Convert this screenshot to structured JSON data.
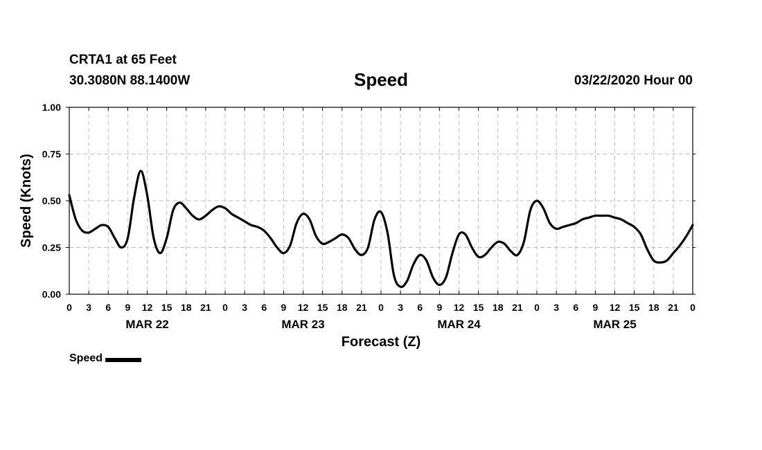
{
  "header": {
    "station": "CRTA1 at 65 Feet",
    "coords": "30.3080N 88.1400W",
    "title": "Speed",
    "date": "03/22/2020 Hour 00"
  },
  "legend": {
    "label": "Speed"
  },
  "chart_data": {
    "type": "line",
    "title": "Speed",
    "xlabel": "Forecast (Z)",
    "ylabel": "Speed (Knots)",
    "xlim": [
      0,
      96
    ],
    "ylim": [
      0,
      1
    ],
    "y_ticks": [
      "0.00",
      "0.25",
      "0.50",
      "0.75",
      "1.00"
    ],
    "x_tick_hours": [
      0,
      3,
      6,
      9,
      12,
      15,
      18,
      21,
      24,
      27,
      30,
      33,
      36,
      39,
      42,
      45,
      48,
      51,
      54,
      57,
      60,
      63,
      66,
      69,
      72,
      75,
      78,
      81,
      84,
      87,
      90,
      93,
      96
    ],
    "x_tick_labels": [
      "0",
      "3",
      "6",
      "9",
      "12",
      "15",
      "18",
      "21",
      "0",
      "3",
      "6",
      "9",
      "12",
      "15",
      "18",
      "21",
      "0",
      "3",
      "6",
      "9",
      "12",
      "15",
      "18",
      "21",
      "0",
      "3",
      "6",
      "9",
      "12",
      "15",
      "18",
      "21",
      "0"
    ],
    "day_labels": [
      {
        "label": "MAR 22",
        "hour": 12
      },
      {
        "label": "MAR 23",
        "hour": 36
      },
      {
        "label": "MAR 24",
        "hour": 60
      },
      {
        "label": "MAR 25",
        "hour": 84
      }
    ],
    "grid": true,
    "legend_position": "bottom-left",
    "series": [
      {
        "name": "Speed",
        "color": "#000000",
        "x": [
          0,
          1,
          2,
          3,
          4,
          5,
          6,
          7,
          8,
          9,
          10,
          11,
          12,
          13,
          14,
          15,
          16,
          17,
          18,
          19,
          20,
          21,
          22,
          23,
          24,
          25,
          26,
          27,
          28,
          29,
          30,
          31,
          32,
          33,
          34,
          35,
          36,
          37,
          38,
          39,
          40,
          41,
          42,
          43,
          44,
          45,
          46,
          47,
          48,
          49,
          50,
          51,
          52,
          53,
          54,
          55,
          56,
          57,
          58,
          59,
          60,
          61,
          62,
          63,
          64,
          65,
          66,
          67,
          68,
          69,
          70,
          71,
          72,
          73,
          74,
          75,
          76,
          77,
          78,
          79,
          80,
          81,
          82,
          83,
          84,
          85,
          86,
          87,
          88,
          89,
          90,
          91,
          92,
          93,
          94,
          95,
          96
        ],
        "y": [
          0.53,
          0.4,
          0.34,
          0.33,
          0.35,
          0.37,
          0.36,
          0.3,
          0.25,
          0.3,
          0.52,
          0.66,
          0.53,
          0.3,
          0.22,
          0.3,
          0.45,
          0.49,
          0.46,
          0.42,
          0.4,
          0.42,
          0.45,
          0.47,
          0.46,
          0.43,
          0.41,
          0.39,
          0.37,
          0.36,
          0.34,
          0.3,
          0.25,
          0.22,
          0.26,
          0.38,
          0.43,
          0.4,
          0.31,
          0.27,
          0.28,
          0.3,
          0.32,
          0.3,
          0.24,
          0.21,
          0.25,
          0.4,
          0.44,
          0.33,
          0.1,
          0.04,
          0.07,
          0.16,
          0.21,
          0.18,
          0.09,
          0.05,
          0.09,
          0.22,
          0.32,
          0.32,
          0.25,
          0.2,
          0.21,
          0.25,
          0.28,
          0.27,
          0.23,
          0.21,
          0.28,
          0.45,
          0.5,
          0.46,
          0.38,
          0.35,
          0.36,
          0.37,
          0.38,
          0.4,
          0.41,
          0.42,
          0.42,
          0.42,
          0.41,
          0.4,
          0.38,
          0.36,
          0.32,
          0.24,
          0.18,
          0.17,
          0.18,
          0.22,
          0.26,
          0.31,
          0.37
        ]
      }
    ]
  }
}
